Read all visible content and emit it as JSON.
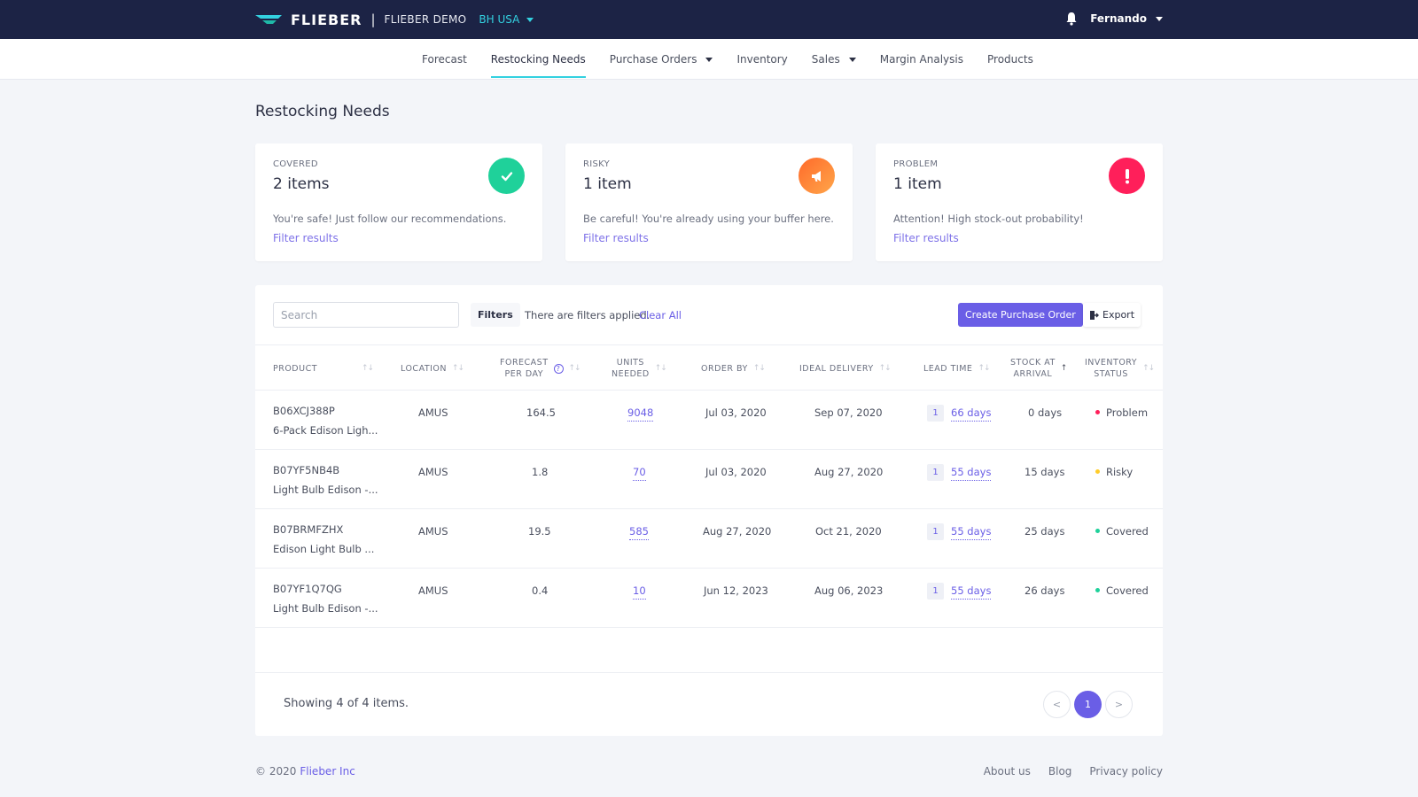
{
  "header": {
    "logo": "FLIEBER",
    "separator": "|",
    "account": "FLIEBER DEMO",
    "region": "BH USA",
    "user": "Fernando"
  },
  "nav": {
    "items": [
      {
        "label": "Forecast"
      },
      {
        "label": "Restocking Needs"
      },
      {
        "label": "Purchase Orders"
      },
      {
        "label": "Inventory"
      },
      {
        "label": "Sales"
      },
      {
        "label": "Margin Analysis"
      },
      {
        "label": "Products"
      }
    ]
  },
  "page": {
    "title": "Restocking Needs"
  },
  "summary": {
    "covered": {
      "label": "COVERED",
      "value": "2 items",
      "desc": "You're safe! Just follow our recommendations.",
      "link": "Filter results",
      "color": "#1fd19a"
    },
    "risky": {
      "label": "RISKY",
      "value": "1 item",
      "desc": "Be careful! You're already using your buffer here.",
      "link": "Filter results",
      "color": "#ff8a2a"
    },
    "problem": {
      "label": "PROBLEM",
      "value": "1 item",
      "desc": "Attention! High stock-out probability!",
      "link": "Filter results",
      "color": "#ff1f5a"
    }
  },
  "toolbar": {
    "search_placeholder": "Search",
    "filters": "Filters",
    "filter_note": "There are filters applied.",
    "clear_all": "Clear All",
    "create": "Create Purchase Order",
    "export": "Export"
  },
  "table": {
    "columns": {
      "product": "PRODUCT",
      "location": "LOCATION",
      "forecast_1": "FORECAST",
      "forecast_2": "PER DAY",
      "units_1": "UNITS",
      "units_2": "NEEDED",
      "order_by": "ORDER BY",
      "ideal_delivery": "IDEAL DELIVERY",
      "lead_time": "LEAD TIME",
      "stock_1": "STOCK AT",
      "stock_2": "ARRIVAL",
      "status_1": "INVENTORY",
      "status_2": "STATUS"
    },
    "rows": [
      {
        "sku": "B06XCJ388P",
        "name": "6-Pack Edison Ligh...",
        "location": "AMUS",
        "forecast": "164.5",
        "units": "9048",
        "order_by": "Jul 03, 2020",
        "delivery": "Sep 07, 2020",
        "lead_badge": "1",
        "lead": "66 days",
        "stock": "0 days",
        "status": "Problem",
        "status_color": "#ff1f5a"
      },
      {
        "sku": "B07YF5NB4B",
        "name": "Light Bulb Edison -...",
        "location": "AMUS",
        "forecast": "1.8",
        "units": "70",
        "order_by": "Jul 03, 2020",
        "delivery": "Aug 27, 2020",
        "lead_badge": "1",
        "lead": "55 days",
        "stock": "15 days",
        "status": "Risky",
        "status_color": "#ffcc2a"
      },
      {
        "sku": "B07BRMFZHX",
        "name": "Edison Light Bulb ...",
        "location": "AMUS",
        "forecast": "19.5",
        "units": "585",
        "order_by": "Aug 27, 2020",
        "delivery": "Oct 21, 2020",
        "lead_badge": "1",
        "lead": "55 days",
        "stock": "25 days",
        "status": "Covered",
        "status_color": "#1fd19a"
      },
      {
        "sku": "B07YF1Q7QG",
        "name": "Light Bulb Edison -...",
        "location": "AMUS",
        "forecast": "0.4",
        "units": "10",
        "order_by": "Jun 12, 2023",
        "delivery": "Aug 06, 2023",
        "lead_badge": "1",
        "lead": "55 days",
        "stock": "26 days",
        "status": "Covered",
        "status_color": "#1fd19a"
      }
    ]
  },
  "pagination": {
    "showing": "Showing 4 of 4 items.",
    "prev": "<",
    "current": "1",
    "next": ">"
  },
  "footer": {
    "copyright": "© 2020",
    "company": "Flieber Inc",
    "links": [
      "About us",
      "Blog",
      "Privacy policy"
    ]
  }
}
